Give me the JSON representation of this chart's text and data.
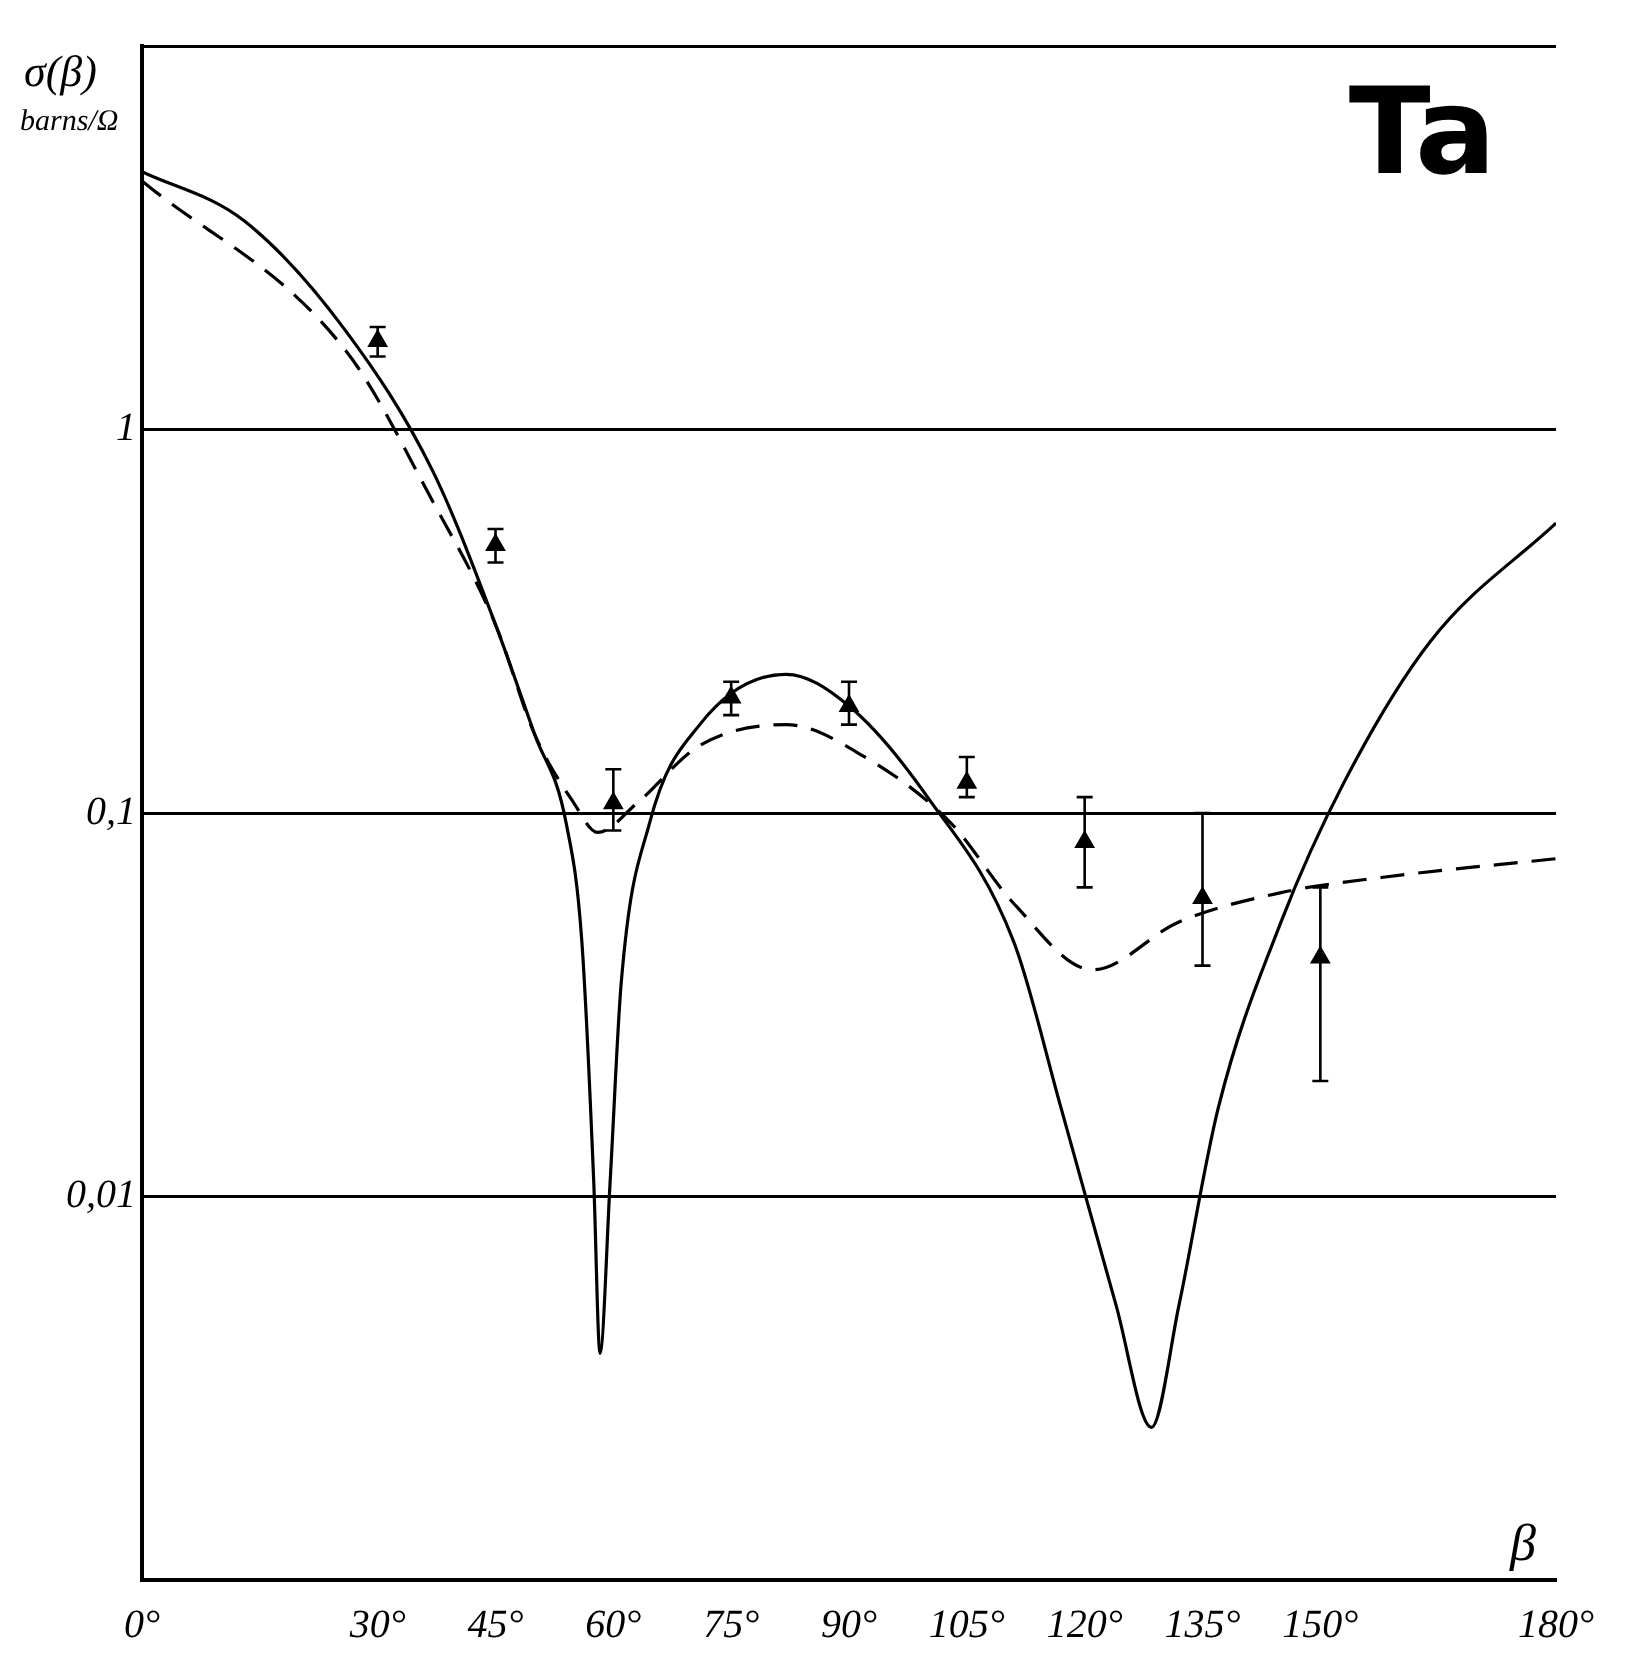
{
  "chart_data": {
    "type": "line",
    "ylabel": "σ(β) barns/Ω",
    "xlabel": "β",
    "annotations": [
      "Ta"
    ],
    "xlim": [
      0,
      180
    ],
    "xticks": [
      {
        "value": 0,
        "label": "0°"
      },
      {
        "value": 30,
        "label": "30°"
      },
      {
        "value": 45,
        "label": "45°"
      },
      {
        "value": 60,
        "label": "60°"
      },
      {
        "value": 75,
        "label": "75°"
      },
      {
        "value": 90,
        "label": "90°"
      },
      {
        "value": 105,
        "label": "105°"
      },
      {
        "value": 120,
        "label": "120°"
      },
      {
        "value": 135,
        "label": "135°"
      },
      {
        "value": 150,
        "label": "150°"
      },
      {
        "value": 180,
        "label": "180°"
      }
    ],
    "ylim": [
      0.001,
      10
    ],
    "yticks": [
      {
        "value": 0.01,
        "label": "0,01"
      },
      {
        "value": 0.1,
        "label": "0,1"
      },
      {
        "value": 1,
        "label": "1"
      },
      {
        "value": 10,
        "label": null
      }
    ],
    "log": "y",
    "grid": "y",
    "legend": false,
    "series": [
      {
        "type": "line",
        "color": "#000000",
        "line_style": "solid",
        "marker": "none",
        "x": [
          0,
          13,
          26,
          37,
          45,
          50,
          54,
          56,
          57.5,
          58.3,
          59.6,
          61,
          64.6,
          71,
          82,
          90,
          100,
          111,
          117,
          124,
          128.5,
          132,
          137,
          145,
          153,
          164,
          180
        ],
        "values": [
          4.7,
          3.5,
          1.8,
          0.78,
          0.31,
          0.16,
          0.094,
          0.046,
          0.011,
          0.0039,
          0.011,
          0.036,
          0.094,
          0.17,
          0.23,
          0.19,
          0.11,
          0.046,
          0.017,
          0.0052,
          0.0025,
          0.0052,
          0.017,
          0.052,
          0.12,
          0.28,
          0.57
        ]
      },
      {
        "type": "line",
        "color": "#000000",
        "line_style": "dashed",
        "marker": "none",
        "x": [
          0,
          26,
          37,
          45,
          50,
          55,
          58,
          63,
          71,
          82,
          92,
          103,
          111,
          121,
          132,
          145,
          158,
          180
        ],
        "values": [
          4.45,
          1.6,
          0.65,
          0.31,
          0.16,
          0.106,
          0.089,
          0.106,
          0.15,
          0.17,
          0.14,
          0.094,
          0.058,
          0.039,
          0.052,
          0.062,
          0.068,
          0.076
        ]
      },
      {
        "type": "scatter",
        "color": "#000000",
        "marker": "triangle",
        "x": [
          30,
          45,
          60,
          75,
          90,
          105,
          120,
          135,
          150
        ],
        "values": [
          1.7,
          0.5,
          0.106,
          0.2,
          0.19,
          0.12,
          0.084,
          0.06,
          0.042
        ],
        "errors": [
          [
            1.55,
            1.85
          ],
          [
            0.45,
            0.55
          ],
          [
            0.09,
            0.13
          ],
          [
            0.18,
            0.22
          ],
          [
            0.17,
            0.22
          ],
          [
            0.11,
            0.14
          ],
          [
            0.064,
            0.11
          ],
          [
            0.04,
            0.1
          ],
          [
            0.02,
            0.064
          ]
        ]
      }
    ]
  }
}
